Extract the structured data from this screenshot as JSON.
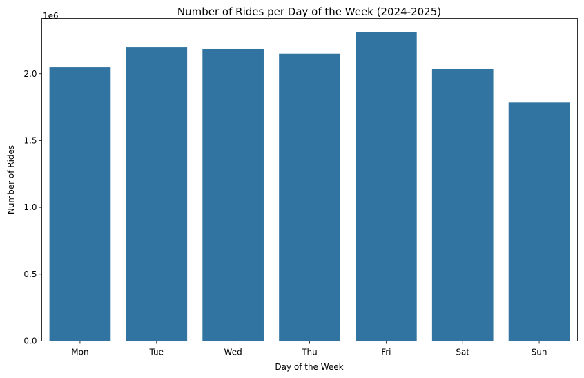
{
  "chart_data": {
    "type": "bar",
    "title": "Number of Rides per Day of the Week (2024-2025)",
    "xlabel": "Day of the Week",
    "ylabel": "Number of Rides",
    "categories": [
      "Mon",
      "Tue",
      "Wed",
      "Thu",
      "Fri",
      "Sat",
      "Sun"
    ],
    "values": [
      2050000,
      2200000,
      2185000,
      2150000,
      2310000,
      2035000,
      1785000
    ],
    "ylim": [
      0,
      2415000
    ],
    "yticks": [
      0,
      500000,
      1000000,
      1500000,
      2000000
    ],
    "ytick_labels": [
      "0.0",
      "0.5",
      "1.0",
      "1.5",
      "2.0"
    ],
    "y_offset_label": "1e6",
    "bar_color": "#3274a1",
    "grid": false
  }
}
